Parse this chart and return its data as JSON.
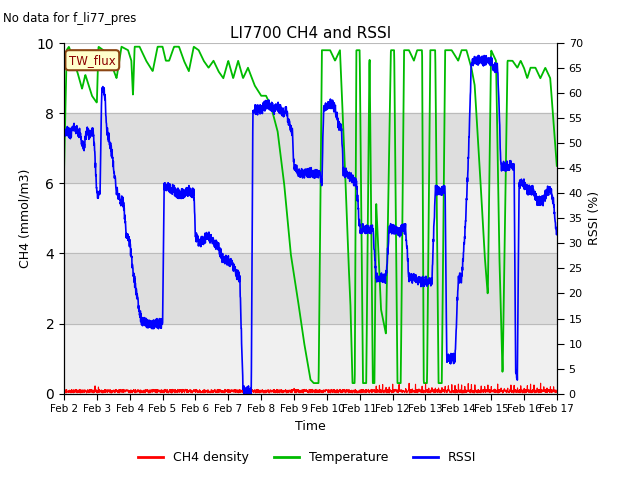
{
  "title": "LI7700 CH4 and RSSI",
  "ylabel_left": "CH4 (mmol/m3)",
  "ylabel_right": "RSSI (%)",
  "xlabel": "Time",
  "annotation_text": "No data for f_li77_pres",
  "box_label": "TW_flux",
  "ylim_left": [
    0,
    10
  ],
  "ylim_right": [
    0,
    70
  ],
  "yticks_left": [
    0,
    2,
    4,
    6,
    8,
    10
  ],
  "yticks_right": [
    0,
    5,
    10,
    15,
    20,
    25,
    30,
    35,
    40,
    45,
    50,
    55,
    60,
    65,
    70
  ],
  "xticklabels": [
    "Feb 2",
    "Feb 3",
    "Feb 4",
    "Feb 5",
    "Feb 6",
    "Feb 7",
    "Feb 8",
    "Feb 9",
    "Feb 10",
    "Feb 11",
    "Feb 12",
    "Feb 13",
    "Feb 14",
    "Feb 15",
    "Feb 16",
    "Feb 17"
  ],
  "color_ch4": "#ff0000",
  "color_temp": "#00bb00",
  "color_rssi": "#0000ff",
  "color_band_dark": "#d0d0d0",
  "color_band_light": "#ebebeb",
  "legend_labels": [
    "CH4 density",
    "Temperature",
    "RSSI"
  ],
  "grid_color": "#bbbbbb",
  "figsize": [
    6.4,
    4.8
  ],
  "dpi": 100,
  "n_days": 15,
  "temp_breakpoints": [
    [
      0.0,
      6.3
    ],
    [
      0.08,
      9.8
    ],
    [
      0.15,
      9.9
    ],
    [
      0.4,
      9.2
    ],
    [
      0.55,
      8.7
    ],
    [
      0.65,
      9.1
    ],
    [
      0.75,
      8.8
    ],
    [
      0.85,
      8.5
    ],
    [
      1.0,
      8.3
    ],
    [
      1.05,
      9.9
    ],
    [
      1.2,
      9.8
    ],
    [
      1.4,
      9.5
    ],
    [
      1.6,
      9.0
    ],
    [
      1.75,
      9.9
    ],
    [
      1.95,
      9.8
    ],
    [
      2.05,
      9.5
    ],
    [
      2.1,
      8.5
    ],
    [
      2.15,
      9.9
    ],
    [
      2.3,
      9.9
    ],
    [
      2.5,
      9.5
    ],
    [
      2.7,
      9.2
    ],
    [
      2.85,
      9.9
    ],
    [
      3.0,
      9.9
    ],
    [
      3.1,
      9.5
    ],
    [
      3.2,
      9.5
    ],
    [
      3.35,
      9.9
    ],
    [
      3.5,
      9.9
    ],
    [
      3.65,
      9.5
    ],
    [
      3.8,
      9.2
    ],
    [
      3.95,
      9.9
    ],
    [
      4.1,
      9.8
    ],
    [
      4.25,
      9.5
    ],
    [
      4.4,
      9.3
    ],
    [
      4.55,
      9.5
    ],
    [
      4.7,
      9.2
    ],
    [
      4.85,
      9.0
    ],
    [
      5.0,
      9.5
    ],
    [
      5.15,
      9.0
    ],
    [
      5.3,
      9.5
    ],
    [
      5.45,
      9.0
    ],
    [
      5.6,
      9.3
    ],
    [
      5.8,
      8.8
    ],
    [
      6.0,
      8.5
    ],
    [
      6.15,
      8.5
    ],
    [
      6.3,
      8.2
    ],
    [
      6.5,
      7.5
    ],
    [
      6.7,
      6.0
    ],
    [
      6.9,
      4.0
    ],
    [
      7.1,
      2.8
    ],
    [
      7.3,
      1.5
    ],
    [
      7.5,
      0.4
    ],
    [
      7.6,
      0.3
    ],
    [
      7.75,
      0.3
    ],
    [
      7.85,
      9.8
    ],
    [
      7.95,
      9.8
    ],
    [
      8.1,
      9.8
    ],
    [
      8.25,
      9.5
    ],
    [
      8.4,
      9.8
    ],
    [
      8.55,
      6.5
    ],
    [
      8.65,
      4.0
    ],
    [
      8.72,
      2.5
    ],
    [
      8.78,
      0.3
    ],
    [
      8.85,
      0.3
    ],
    [
      8.9,
      9.8
    ],
    [
      9.0,
      9.8
    ],
    [
      9.1,
      0.3
    ],
    [
      9.2,
      0.3
    ],
    [
      9.3,
      9.8
    ],
    [
      9.4,
      0.3
    ],
    [
      9.45,
      0.3
    ],
    [
      9.5,
      5.5
    ],
    [
      9.65,
      2.4
    ],
    [
      9.8,
      1.7
    ],
    [
      9.95,
      9.8
    ],
    [
      10.05,
      9.8
    ],
    [
      10.15,
      0.3
    ],
    [
      10.25,
      0.3
    ],
    [
      10.35,
      9.8
    ],
    [
      10.5,
      9.8
    ],
    [
      10.65,
      9.5
    ],
    [
      10.75,
      9.8
    ],
    [
      10.9,
      9.8
    ],
    [
      10.95,
      0.3
    ],
    [
      11.05,
      0.3
    ],
    [
      11.15,
      9.8
    ],
    [
      11.3,
      9.8
    ],
    [
      11.4,
      0.3
    ],
    [
      11.5,
      0.3
    ],
    [
      11.6,
      9.8
    ],
    [
      11.8,
      9.8
    ],
    [
      12.0,
      9.5
    ],
    [
      12.1,
      9.8
    ],
    [
      12.25,
      9.8
    ],
    [
      12.4,
      9.3
    ],
    [
      12.5,
      8.8
    ],
    [
      12.65,
      6.5
    ],
    [
      12.8,
      4.0
    ],
    [
      12.9,
      2.8
    ],
    [
      13.0,
      9.8
    ],
    [
      13.15,
      9.5
    ],
    [
      13.25,
      4.0
    ],
    [
      13.35,
      0.5
    ],
    [
      13.5,
      9.5
    ],
    [
      13.65,
      9.5
    ],
    [
      13.8,
      9.3
    ],
    [
      13.9,
      9.5
    ],
    [
      14.0,
      9.3
    ],
    [
      14.1,
      9.0
    ],
    [
      14.2,
      9.3
    ],
    [
      14.35,
      9.3
    ],
    [
      14.5,
      9.0
    ],
    [
      14.65,
      9.3
    ],
    [
      14.8,
      9.0
    ],
    [
      15.0,
      6.5
    ]
  ],
  "rssi_breakpoints": [
    [
      0.0,
      7.5
    ],
    [
      0.1,
      7.5
    ],
    [
      0.2,
      7.4
    ],
    [
      0.3,
      7.6
    ],
    [
      0.4,
      7.5
    ],
    [
      0.5,
      7.4
    ],
    [
      0.6,
      7.0
    ],
    [
      0.7,
      7.5
    ],
    [
      0.75,
      7.4
    ],
    [
      0.85,
      7.5
    ],
    [
      0.9,
      7.4
    ],
    [
      1.0,
      5.8
    ],
    [
      1.05,
      5.6
    ],
    [
      1.1,
      5.8
    ],
    [
      1.15,
      8.7
    ],
    [
      1.2,
      8.7
    ],
    [
      1.25,
      8.5
    ],
    [
      1.3,
      7.5
    ],
    [
      1.4,
      7.2
    ],
    [
      1.5,
      6.5
    ],
    [
      1.6,
      5.8
    ],
    [
      1.7,
      5.5
    ],
    [
      1.8,
      5.5
    ],
    [
      1.9,
      4.5
    ],
    [
      2.0,
      4.3
    ],
    [
      2.1,
      3.5
    ],
    [
      2.2,
      2.9
    ],
    [
      2.35,
      2.1
    ],
    [
      2.5,
      2.0
    ],
    [
      2.7,
      2.0
    ],
    [
      2.85,
      2.0
    ],
    [
      3.0,
      2.0
    ],
    [
      3.05,
      5.9
    ],
    [
      3.1,
      5.9
    ],
    [
      3.2,
      5.9
    ],
    [
      3.35,
      5.8
    ],
    [
      3.5,
      5.7
    ],
    [
      3.65,
      5.7
    ],
    [
      3.8,
      5.8
    ],
    [
      3.95,
      5.7
    ],
    [
      4.0,
      4.5
    ],
    [
      4.1,
      4.3
    ],
    [
      4.25,
      4.4
    ],
    [
      4.4,
      4.5
    ],
    [
      4.55,
      4.3
    ],
    [
      4.7,
      4.2
    ],
    [
      4.85,
      3.8
    ],
    [
      5.0,
      3.8
    ],
    [
      5.1,
      3.7
    ],
    [
      5.2,
      3.5
    ],
    [
      5.35,
      3.3
    ],
    [
      5.45,
      0.1
    ],
    [
      5.6,
      0.1
    ],
    [
      5.7,
      0.0
    ],
    [
      5.75,
      8.1
    ],
    [
      5.85,
      8.1
    ],
    [
      6.0,
      8.1
    ],
    [
      6.1,
      8.2
    ],
    [
      6.2,
      8.3
    ],
    [
      6.3,
      8.2
    ],
    [
      6.4,
      8.1
    ],
    [
      6.5,
      8.2
    ],
    [
      6.6,
      8.1
    ],
    [
      6.7,
      8.0
    ],
    [
      6.75,
      8.1
    ],
    [
      6.85,
      7.7
    ],
    [
      6.95,
      7.5
    ],
    [
      7.0,
      6.5
    ],
    [
      7.05,
      6.5
    ],
    [
      7.1,
      6.3
    ],
    [
      7.2,
      6.3
    ],
    [
      7.35,
      6.3
    ],
    [
      7.5,
      6.3
    ],
    [
      7.6,
      6.3
    ],
    [
      7.7,
      6.3
    ],
    [
      7.8,
      6.2
    ],
    [
      7.85,
      6.0
    ],
    [
      7.9,
      8.1
    ],
    [
      8.0,
      8.2
    ],
    [
      8.1,
      8.3
    ],
    [
      8.2,
      8.2
    ],
    [
      8.3,
      8.0
    ],
    [
      8.35,
      7.7
    ],
    [
      8.45,
      7.5
    ],
    [
      8.5,
      6.3
    ],
    [
      8.6,
      6.3
    ],
    [
      8.7,
      6.2
    ],
    [
      8.8,
      6.1
    ],
    [
      8.9,
      6.0
    ],
    [
      9.0,
      4.7
    ],
    [
      9.1,
      4.7
    ],
    [
      9.2,
      4.7
    ],
    [
      9.3,
      4.7
    ],
    [
      9.4,
      4.7
    ],
    [
      9.5,
      3.3
    ],
    [
      9.65,
      3.3
    ],
    [
      9.8,
      3.3
    ],
    [
      9.9,
      4.7
    ],
    [
      10.0,
      4.7
    ],
    [
      10.1,
      4.7
    ],
    [
      10.2,
      4.6
    ],
    [
      10.3,
      4.7
    ],
    [
      10.4,
      4.7
    ],
    [
      10.5,
      3.3
    ],
    [
      10.6,
      3.3
    ],
    [
      10.7,
      3.3
    ],
    [
      10.8,
      3.2
    ],
    [
      10.9,
      3.2
    ],
    [
      11.0,
      3.2
    ],
    [
      11.1,
      3.2
    ],
    [
      11.2,
      3.2
    ],
    [
      11.3,
      5.8
    ],
    [
      11.4,
      5.8
    ],
    [
      11.5,
      5.8
    ],
    [
      11.6,
      5.8
    ],
    [
      11.65,
      1.0
    ],
    [
      11.7,
      1.0
    ],
    [
      11.8,
      1.0
    ],
    [
      11.9,
      1.0
    ],
    [
      12.0,
      3.3
    ],
    [
      12.1,
      3.3
    ],
    [
      12.2,
      4.5
    ],
    [
      12.3,
      6.5
    ],
    [
      12.4,
      9.5
    ],
    [
      12.5,
      9.5
    ],
    [
      12.6,
      9.5
    ],
    [
      12.7,
      9.5
    ],
    [
      12.8,
      9.5
    ],
    [
      12.9,
      9.5
    ],
    [
      13.0,
      9.5
    ],
    [
      13.1,
      9.3
    ],
    [
      13.2,
      9.3
    ],
    [
      13.3,
      6.5
    ],
    [
      13.4,
      6.5
    ],
    [
      13.5,
      6.5
    ],
    [
      13.6,
      6.5
    ],
    [
      13.7,
      6.5
    ],
    [
      13.75,
      0.6
    ],
    [
      13.8,
      0.5
    ],
    [
      13.85,
      6.0
    ],
    [
      13.9,
      6.0
    ],
    [
      14.0,
      6.0
    ],
    [
      14.1,
      5.8
    ],
    [
      14.2,
      5.8
    ],
    [
      14.3,
      5.8
    ],
    [
      14.4,
      5.5
    ],
    [
      14.5,
      5.5
    ],
    [
      14.6,
      5.5
    ],
    [
      14.7,
      5.8
    ],
    [
      14.8,
      5.8
    ],
    [
      14.9,
      5.5
    ],
    [
      15.0,
      4.5
    ]
  ]
}
